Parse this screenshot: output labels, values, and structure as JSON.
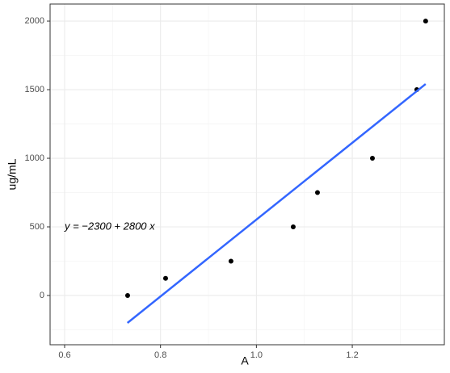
{
  "chart_data": {
    "type": "scatter",
    "xlabel": "A",
    "ylabel": "ug/mL",
    "annotation": "y = −2300 + 2800 x",
    "x": [
      0.7314,
      0.8106,
      0.947,
      1.0768,
      1.1274,
      1.242,
      1.3346,
      1.353
    ],
    "values": [
      0,
      125,
      250,
      500,
      750,
      1000,
      1500,
      2000
    ],
    "color": "#000000",
    "fit": {
      "x": [
        0.731,
        1.353
      ],
      "values": [
        -200,
        1541
      ],
      "color": "#3366ff"
    },
    "xlim": [
      0.5697,
      1.392
    ],
    "ylim": [
      -359,
      2124
    ],
    "xticks": [
      0.6,
      0.8,
      {
        "value": 1.0,
        "label": "1.0"
      },
      1.2
    ],
    "yticks": [
      0,
      500,
      1000,
      1500,
      2000
    ],
    "grid": true
  }
}
